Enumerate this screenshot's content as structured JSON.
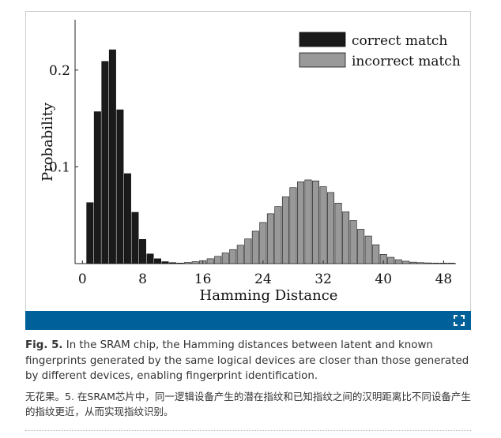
{
  "chart_data": {
    "type": "bar",
    "xlabel": "Hamming Distance",
    "ylabel": "Probability",
    "xlim": [
      -1,
      50
    ],
    "ylim": [
      0,
      0.25
    ],
    "xticks": [
      "0",
      "8",
      "16",
      "24",
      "32",
      "40",
      "48"
    ],
    "yticks": [
      "0.1",
      "0.2"
    ],
    "grid": false,
    "legend_position": "top-right",
    "series": [
      {
        "name": "correct match",
        "color": "#1a1a1a",
        "x": [
          1,
          2,
          3,
          4,
          5,
          6,
          7,
          8,
          9,
          10,
          11,
          12,
          13,
          14
        ],
        "values": [
          0.063,
          0.157,
          0.209,
          0.221,
          0.159,
          0.093,
          0.053,
          0.025,
          0.01,
          0.005,
          0.002,
          0.001,
          0.0005,
          0.0003
        ]
      },
      {
        "name": "incorrect match",
        "color": "#999999",
        "x": [
          13,
          14,
          15,
          16,
          17,
          18,
          19,
          20,
          21,
          22,
          23,
          24,
          25,
          26,
          27,
          28,
          29,
          30,
          31,
          32,
          33,
          34,
          35,
          36,
          37,
          38,
          39,
          40,
          41,
          42,
          43,
          44,
          45,
          46,
          47,
          48,
          49
        ],
        "values": [
          0.0005,
          0.0012,
          0.002,
          0.003,
          0.005,
          0.0075,
          0.011,
          0.0145,
          0.019,
          0.0255,
          0.0335,
          0.0425,
          0.0515,
          0.059,
          0.069,
          0.0785,
          0.0845,
          0.0865,
          0.0855,
          0.0795,
          0.0735,
          0.0625,
          0.0535,
          0.0445,
          0.0355,
          0.0285,
          0.0195,
          0.0095,
          0.0065,
          0.004,
          0.0025,
          0.0015,
          0.001,
          0.0007,
          0.0004,
          0.0003,
          0.0002
        ]
      }
    ]
  },
  "caption": {
    "label": "Fig. 5.",
    "text": " In the SRAM chip, the Hamming distances between latent and known fingerprints generated by the same logical devices are closer than those generated by different devices, enabling fingerprint identification."
  },
  "caption_zh": "无花果。5. 在SRAM芯片中，同一逻辑设备产生的潜在指纹和已知指纹之间的汉明距离比不同设备产生的指纹更近，从而实现指纹识别。",
  "colors": {
    "accent_bar": "#00609a"
  },
  "icons": {
    "expand": "expand-icon"
  }
}
